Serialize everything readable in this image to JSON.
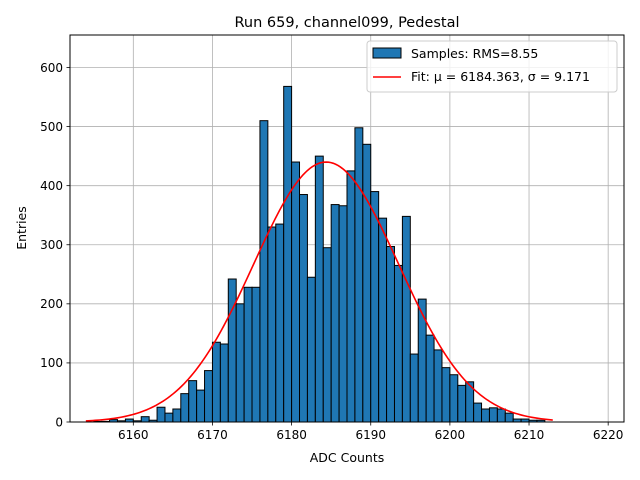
{
  "chart_data": {
    "type": "bar",
    "title": "Run 659, channel099, Pedestal",
    "xlabel": "ADC Counts",
    "ylabel": "Entries",
    "xlim": [
      6152,
      6222
    ],
    "ylim": [
      0,
      655
    ],
    "xticks": [
      6160,
      6170,
      6180,
      6190,
      6200,
      6210,
      6220
    ],
    "yticks": [
      0,
      100,
      200,
      300,
      400,
      500,
      600
    ],
    "grid": true,
    "legend_position": "top-right",
    "histogram": {
      "name": "Samples: RMS=8.55",
      "color": "#1f77b4",
      "bin_start": 6155,
      "bin_width": 1,
      "counts": [
        1,
        1,
        4,
        2,
        5,
        2,
        9,
        3,
        25,
        15,
        22,
        48,
        70,
        54,
        87,
        135,
        132,
        242,
        200,
        228,
        228,
        510,
        330,
        335,
        568,
        440,
        385,
        245,
        450,
        295,
        368,
        366,
        425,
        498,
        470,
        390,
        345,
        297,
        265,
        348,
        115,
        208,
        147,
        122,
        92,
        80,
        62,
        68,
        32,
        22,
        24,
        22,
        15,
        5,
        5,
        3,
        3
      ]
    },
    "fit": {
      "name": "Fit: μ = 6184.363, σ = 9.171",
      "color": "#ff0000",
      "mu": 6184.363,
      "sigma": 9.171,
      "amplitude": 440,
      "x_range": [
        6154.0,
        6213.0
      ]
    }
  }
}
